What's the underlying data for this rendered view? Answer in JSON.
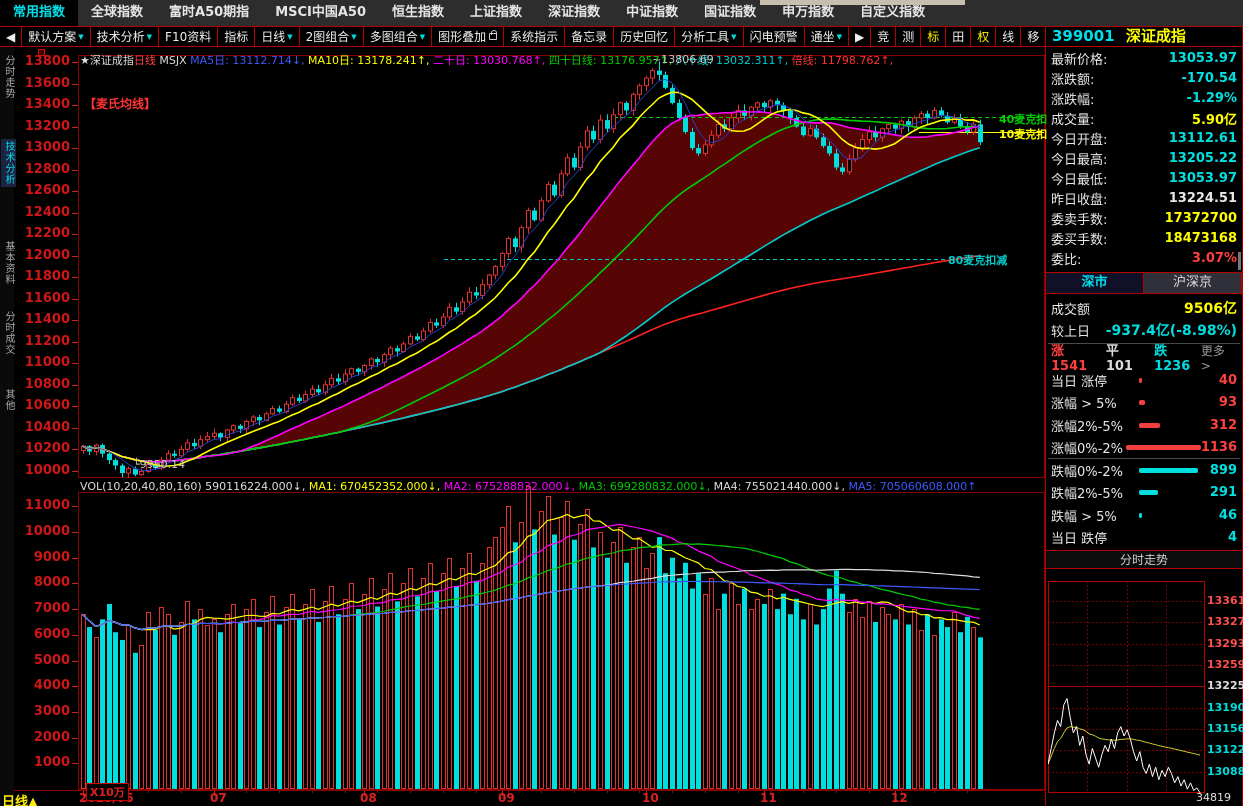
{
  "top_menu": {
    "items": [
      {
        "label": "常用指数",
        "active": true
      },
      {
        "label": "全球指数"
      },
      {
        "label": "富时A50期指"
      },
      {
        "label": "MSCI中国A50"
      },
      {
        "label": "恒生指数"
      },
      {
        "label": "上证指数"
      },
      {
        "label": "深证指数"
      },
      {
        "label": "中证指数"
      },
      {
        "label": "国证指数"
      },
      {
        "label": "申万指数"
      },
      {
        "label": "自定义指数"
      }
    ]
  },
  "toolbar": {
    "items": [
      {
        "label": "◀",
        "name": "collapse-left-icon"
      },
      {
        "label": "默认方案",
        "dropdown": true,
        "name": "default-scheme-button"
      },
      {
        "label": "技术分析",
        "dropdown": true,
        "name": "technical-analysis-button"
      },
      {
        "label": "F10资料",
        "name": "f10-info-button"
      },
      {
        "label": "指标",
        "name": "indicator-button"
      },
      {
        "label": "日线",
        "dropdown": true,
        "name": "period-daily-button"
      },
      {
        "label": "2图组合",
        "dropdown": true,
        "name": "two-chart-layout-button"
      },
      {
        "label": "多图组合",
        "dropdown": true,
        "name": "multi-chart-layout-button"
      },
      {
        "label": "图形叠加",
        "lock": true,
        "name": "overlay-button"
      },
      {
        "label": "系统指示",
        "name": "system-signal-button"
      },
      {
        "label": "备忘录",
        "name": "memo-button"
      },
      {
        "label": "历史回忆",
        "name": "history-recall-button"
      },
      {
        "label": "分析工具",
        "dropdown": true,
        "name": "analysis-tools-button"
      },
      {
        "label": "闪电预警",
        "name": "flash-alert-button"
      },
      {
        "label": "通坐",
        "dropdown": true,
        "name": "channel-button"
      },
      {
        "label": "▶",
        "name": "play-icon"
      },
      {
        "label": "竞",
        "name": "auction-button"
      },
      {
        "label": "测",
        "name": "measure-button"
      },
      {
        "label": "标",
        "highlight": true,
        "name": "mark-button"
      },
      {
        "label": "田",
        "name": "grid-button"
      },
      {
        "label": "权",
        "highlight": true,
        "name": "rights-button"
      },
      {
        "label": "线",
        "name": "line-button"
      },
      {
        "label": "移",
        "name": "move-button"
      },
      {
        "label": "⊡",
        "name": "window-restore-icon"
      },
      {
        "label": "▶▏",
        "name": "next-panel-icon"
      }
    ],
    "symbol_code": "399001",
    "symbol_name": "深证成指"
  },
  "left_tabs": {
    "items": [
      {
        "label": "分时走势"
      },
      {
        "label": "技术分析",
        "active": true
      },
      {
        "label": "基本资料"
      },
      {
        "label": "分时成交"
      },
      {
        "label": "其他"
      }
    ]
  },
  "quote_panel": {
    "rows": [
      {
        "label": "最新价格:",
        "value": "13053.97",
        "color": "cyan"
      },
      {
        "label": "涨跌额:",
        "value": "-170.54",
        "color": "cyan"
      },
      {
        "label": "涨跌幅:",
        "value": "-1.29%",
        "color": "cyan"
      },
      {
        "label": "成交量:",
        "value": "5.90亿",
        "color": "yellow"
      },
      {
        "label": "今日开盘:",
        "value": "13112.61",
        "color": "cyan"
      },
      {
        "label": "今日最高:",
        "value": "13205.22",
        "color": "cyan"
      },
      {
        "label": "今日最低:",
        "value": "13053.97",
        "color": "cyan"
      },
      {
        "label": "昨日收盘:",
        "value": "13224.51",
        "color": "white"
      },
      {
        "label": "委卖手数:",
        "value": "17372700",
        "color": "yellow"
      },
      {
        "label": "委买手数:",
        "value": "18473168",
        "color": "yellow"
      },
      {
        "label": "委比:",
        "value": "3.07%",
        "color": "red"
      }
    ]
  },
  "market": {
    "tabs": [
      {
        "label": "深市",
        "active": true
      },
      {
        "label": "沪深京",
        "active": false
      }
    ],
    "turnover": {
      "label": "成交额",
      "value": "9506亿",
      "color": "yellow"
    },
    "vs_prev": {
      "label": "较上日",
      "value": "-937.4亿(-8.98%)",
      "color": "cyan"
    },
    "breadth": {
      "adv": "涨1541",
      "flat": "平101",
      "dec": "跌1236",
      "more": "更多 >"
    },
    "ladder": [
      {
        "label": "当日 涨停",
        "value": 40,
        "color": "red"
      },
      {
        "label": "涨幅 > 5%",
        "value": 93,
        "color": "red"
      },
      {
        "label": "涨幅2%-5%",
        "value": 312,
        "color": "red"
      },
      {
        "label": "涨幅0%-2%",
        "value": 1136,
        "color": "red"
      },
      {
        "label": "跌幅0%-2%",
        "value": 899,
        "color": "cyan"
      },
      {
        "label": "跌幅2%-5%",
        "value": 291,
        "color": "cyan"
      },
      {
        "label": "跌幅 > 5%",
        "value": 46,
        "color": "cyan"
      },
      {
        "label": "当日 跌停",
        "value": 4,
        "color": "cyan"
      }
    ]
  },
  "status_bar": {
    "period": "日线"
  },
  "chart_data": [
    {
      "type": "candlestick",
      "title": "深证成指日线",
      "header_segments": [
        {
          "text": "★深证成指",
          "color": "#dcdcdc"
        },
        {
          "text": "日线 ",
          "color": "#ff4444"
        },
        {
          "text": "MSJX ",
          "color": "#dcdcdc"
        },
        {
          "text": "MA5日: 13112.714↓, ",
          "color": "#3e58ff"
        },
        {
          "text": "MA10日: 13178.241↑, ",
          "color": "#ffff00"
        },
        {
          "text": "二十日: 13030.768↑, ",
          "color": "#ff00ff"
        },
        {
          "text": "四十日线: 13176.957↑, ",
          "color": "#00cc00"
        },
        {
          "text": "八十线: 13032.311↑, ",
          "color": "#00cccc"
        },
        {
          "text": "倍线: 11798.762↑, ",
          "color": "#ff3333"
        }
      ],
      "band_label": "【麦氏均线】",
      "ylim": [
        9900,
        13900
      ],
      "yticks": [
        13800,
        13600,
        13400,
        13200,
        13000,
        12800,
        12600,
        12400,
        12200,
        12000,
        11800,
        11600,
        11400,
        11200,
        11000,
        10800,
        10600,
        10400,
        10200,
        10000
      ],
      "xticks": [
        {
          "label": "2025/06",
          "index": 0
        },
        {
          "label": "07",
          "index": 20
        },
        {
          "label": "08",
          "index": 43
        },
        {
          "label": "09",
          "index": 64
        },
        {
          "label": "10",
          "index": 86
        },
        {
          "label": "11",
          "index": 104
        },
        {
          "label": "12",
          "index": 124
        }
      ],
      "closes": [
        10230,
        10180,
        10240,
        10160,
        10100,
        10050,
        9980,
        10020,
        9965,
        9995,
        10060,
        10025,
        10100,
        10160,
        10140,
        10200,
        10260,
        10230,
        10290,
        10320,
        10350,
        10310,
        10380,
        10420,
        10390,
        10460,
        10500,
        10470,
        10530,
        10580,
        10550,
        10620,
        10680,
        10650,
        10710,
        10760,
        10730,
        10800,
        10860,
        10830,
        10900,
        10950,
        10920,
        10980,
        11040,
        11010,
        11080,
        11140,
        11110,
        11180,
        11250,
        11220,
        11300,
        11380,
        11350,
        11430,
        11520,
        11480,
        11570,
        11660,
        11630,
        11730,
        11820,
        11900,
        12020,
        12160,
        12080,
        12260,
        12420,
        12330,
        12510,
        12660,
        12560,
        12760,
        12910,
        12820,
        13010,
        13160,
        13080,
        13260,
        13180,
        13310,
        13420,
        13350,
        13500,
        13580,
        13650,
        13720,
        13680,
        13560,
        13420,
        13280,
        13150,
        13000,
        12950,
        13030,
        13120,
        13220,
        13180,
        13280,
        13350,
        13300,
        13380,
        13420,
        13380,
        13440,
        13400,
        13350,
        13280,
        13200,
        13120,
        13180,
        13100,
        13020,
        12950,
        12820,
        12780,
        12900,
        13000,
        13080,
        13150,
        13100,
        13180,
        13220,
        13180,
        13250,
        13200,
        13280,
        13320,
        13280,
        13350,
        13300,
        13240,
        13280,
        13200,
        13150,
        13220,
        13054
      ],
      "high_annotation": {
        "text": "13806.69",
        "value": 13806.69,
        "index": 88
      },
      "low_annotation": {
        "text": "9950.14",
        "value": 9950.14,
        "index": 8
      },
      "ma_windows": [
        5,
        10,
        20,
        40,
        80,
        160
      ],
      "ma_colors": [
        "#2a3fd0",
        "#ffff00",
        "#ff00ff",
        "#00cc00",
        "#00cccc",
        "#ff2020"
      ],
      "band_between": [
        20,
        80
      ],
      "band_color": "#570404",
      "deduction_lines": [
        {
          "label": "40麦克扣",
          "value": 13290,
          "color": "#00cc00",
          "dash": true,
          "from": 600,
          "to": 1030,
          "label_x": 999,
          "label_y": 111
        },
        {
          "label": "10麦克扣",
          "value": 13150,
          "color": "#ffff00",
          "dash": false,
          "from": 905,
          "to": 1030,
          "label_x": 999,
          "label_y": 126
        },
        {
          "label": "80麦克扣减",
          "value": 11970,
          "color": "#00cccc",
          "dash": true,
          "from": 430,
          "to": 932,
          "label_x": 948,
          "label_y": 252
        }
      ],
      "up_color": "#e03030",
      "down_color": "#00dede"
    },
    {
      "type": "bar",
      "title": "VOL",
      "header_segments": [
        {
          "text": "VOL(10,20,40,80,160) 590116224.000↓, ",
          "color": "#dcdcdc"
        },
        {
          "text": "MA1: 670452352.000↓, ",
          "color": "#ffff00"
        },
        {
          "text": "MA2: 675288832.000↓, ",
          "color": "#ff00ff"
        },
        {
          "text": "MA3: 699280832.000↓, ",
          "color": "#00cc00"
        },
        {
          "text": "MA4: 755021440.000↓, ",
          "color": "#dcdcdc"
        },
        {
          "text": "MA5: 705060608.000↑",
          "color": "#3e58ff"
        }
      ],
      "unit_label": "X10万",
      "ylim": [
        0,
        11800
      ],
      "yticks": [
        11000,
        10000,
        9000,
        8000,
        7000,
        6000,
        5000,
        4000,
        3000,
        2000,
        1000
      ],
      "values": [
        6800,
        6300,
        5900,
        6600,
        7200,
        6100,
        5800,
        6400,
        5300,
        5600,
        6900,
        6200,
        7100,
        6800,
        6000,
        6500,
        7300,
        6600,
        7000,
        6400,
        6600,
        6100,
        6800,
        7200,
        6500,
        7000,
        7400,
        6300,
        6900,
        7500,
        6400,
        7100,
        7600,
        6600,
        7200,
        7800,
        6500,
        7300,
        7900,
        6800,
        7400,
        8000,
        7000,
        7600,
        8200,
        7100,
        7800,
        8400,
        7300,
        8000,
        8600,
        7500,
        8200,
        8800,
        7700,
        8400,
        9000,
        7900,
        8600,
        9200,
        8100,
        8800,
        9400,
        9800,
        10200,
        11000,
        9600,
        10400,
        11800,
        10100,
        10800,
        11400,
        9900,
        10600,
        11200,
        9700,
        10300,
        10900,
        9400,
        10000,
        9000,
        9600,
        10200,
        8800,
        9400,
        9800,
        8600,
        9200,
        9800,
        8400,
        9000,
        8200,
        8800,
        7800,
        8400,
        7600,
        8200,
        7000,
        7600,
        8000,
        7200,
        7800,
        7000,
        7400,
        7200,
        7800,
        7000,
        7600,
        6800,
        7400,
        6600,
        7200,
        6400,
        7000,
        7800,
        8500,
        7600,
        6900,
        7400,
        6700,
        7300,
        6500,
        7100,
        6800,
        6600,
        7200,
        6400,
        7000,
        6200,
        6800,
        6000,
        6600,
        6300,
        6900,
        6100,
        6700,
        6300,
        5901
      ],
      "ma_windows": [
        10,
        20,
        40,
        80,
        160
      ],
      "ma_colors": [
        "#ffff00",
        "#ff00ff",
        "#00cc00",
        "#dcdcdc",
        "#3e58ff"
      ]
    },
    {
      "type": "line",
      "title": "分时走势",
      "prev_close": 13225,
      "ylim": [
        13040,
        13393
      ],
      "yticks": [
        {
          "label": "13361",
          "color": "#ff5050"
        },
        {
          "label": "13327",
          "color": "#ff5050"
        },
        {
          "label": "13293",
          "color": "#ff5050"
        },
        {
          "label": "13259",
          "color": "#ff5050"
        },
        {
          "label": "13225",
          "color": "#dddddd"
        },
        {
          "label": "13190",
          "color": "#00dddd"
        },
        {
          "label": "13156",
          "color": "#00dddd"
        },
        {
          "label": "13122",
          "color": "#00dddd"
        },
        {
          "label": "13088",
          "color": "#00dddd"
        }
      ],
      "prices": [
        13100,
        13125,
        13150,
        13170,
        13160,
        13195,
        13205,
        13175,
        13150,
        13160,
        13130,
        13145,
        13115,
        13100,
        13125,
        13110,
        13095,
        13115,
        13130,
        13120,
        13140,
        13125,
        13150,
        13160,
        13145,
        13155,
        13140,
        13120,
        13105,
        13120,
        13095,
        13085,
        13100,
        13080,
        13095,
        13075,
        13090,
        13080,
        13095,
        13085,
        13070,
        13080,
        13065,
        13075,
        13060,
        13070,
        13058,
        13062,
        13054
      ],
      "price_color": "#ffffff",
      "avg_color": "#cfcf30",
      "bottom_label": "34819"
    }
  ]
}
